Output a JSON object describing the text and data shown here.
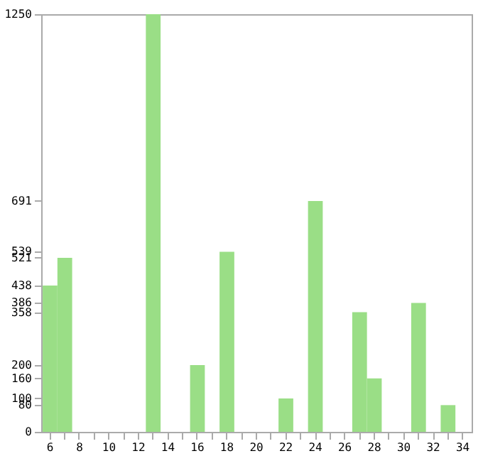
{
  "chart_data": {
    "type": "bar",
    "categories": [
      "6",
      null,
      "8",
      null,
      "10",
      null,
      "12",
      null,
      "14",
      null,
      "16",
      null,
      "18",
      null,
      "20",
      null,
      "22",
      null,
      "24",
      null,
      "26",
      null,
      "28",
      null,
      "30",
      null,
      "32",
      null,
      "34"
    ],
    "values": [
      438,
      521,
      0,
      0,
      0,
      0,
      0,
      1250,
      0,
      0,
      200,
      0,
      539,
      0,
      0,
      0,
      100,
      0,
      691,
      0,
      0,
      358,
      160,
      0,
      0,
      386,
      0,
      80,
      0
    ],
    "color": "#9ade86",
    "ylim": [
      0,
      1250
    ],
    "yticks": [
      0,
      80,
      100,
      160,
      200,
      358,
      386,
      438,
      521,
      539,
      691,
      1250
    ],
    "grid": false
  }
}
